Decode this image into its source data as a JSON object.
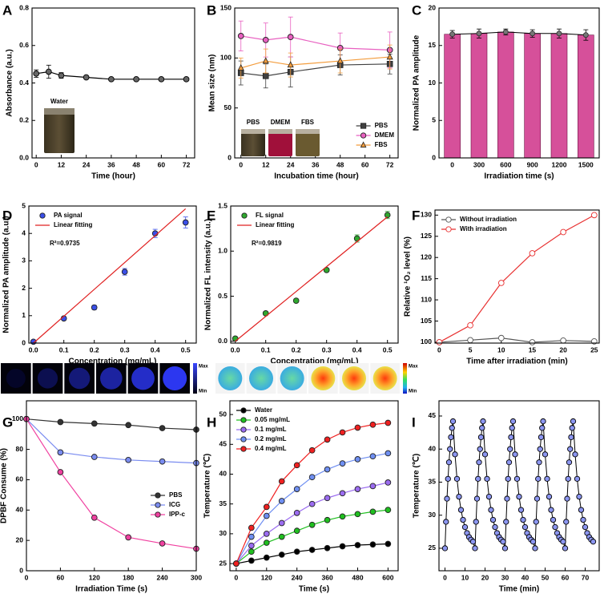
{
  "chart_data": [
    {
      "type": "line",
      "label": "A",
      "xlabel": "Time (hour)",
      "ylabel": "Absorbance (a.u.)",
      "annotation": "Water",
      "x": [
        0,
        6,
        12,
        24,
        36,
        48,
        60,
        72
      ],
      "xlim": [
        -2,
        76
      ],
      "xticks": [
        0,
        12,
        24,
        36,
        48,
        60,
        72
      ],
      "ylim": [
        0,
        0.8
      ],
      "yticks": [
        {
          "value": 0,
          "label": "0.0"
        },
        0.2,
        0.4,
        0.6,
        0.8
      ],
      "series": [
        {
          "color": "#000000",
          "marker": "circle",
          "marker_color": "#666666",
          "values": [
            0.45,
            0.46,
            0.44,
            0.43,
            0.42,
            0.42,
            0.42,
            0.42
          ],
          "errors": [
            0.02,
            0.035,
            0.015,
            0.008,
            0.008,
            0.008,
            0.008,
            0.008
          ]
        }
      ]
    },
    {
      "type": "line",
      "label": "B",
      "xlabel": "Incubation time (hour)",
      "ylabel": "Mean size (nm)",
      "vial_labels": [
        "PBS",
        "DMEM",
        "FBS"
      ],
      "x": [
        0,
        12,
        24,
        48,
        72
      ],
      "xlim": [
        -3,
        76
      ],
      "xticks": [
        0,
        12,
        24,
        36,
        48,
        60,
        72
      ],
      "ylim": [
        0,
        150
      ],
      "yticks": [
        0,
        50,
        100,
        150
      ],
      "legend": "lower right",
      "series": [
        {
          "name": "PBS",
          "color": "#404040",
          "marker": "square",
          "values": [
            85,
            82,
            86,
            93,
            94
          ],
          "errors": [
            12,
            12,
            15,
            10,
            10
          ]
        },
        {
          "name": "DMEM",
          "color": "#e860c0",
          "marker": "circle",
          "values": [
            122,
            118,
            121,
            110,
            108
          ],
          "errors": [
            15,
            17,
            20,
            15,
            18
          ]
        },
        {
          "name": "FBS",
          "color": "#f39c3c",
          "marker": "triangle",
          "values": [
            90,
            97,
            93,
            97,
            101
          ],
          "errors": [
            10,
            12,
            12,
            12,
            12
          ]
        }
      ]
    },
    {
      "type": "bar",
      "label": "C",
      "xlabel": "Irradiation time (s)",
      "ylabel": "Normalized PA amplitude",
      "categories": [
        "0",
        "300",
        "600",
        "900",
        "1200",
        "1500"
      ],
      "values": [
        16.5,
        16.6,
        16.8,
        16.6,
        16.6,
        16.4
      ],
      "errors": [
        0.5,
        0.6,
        0.4,
        0.5,
        0.6,
        0.7
      ],
      "color": "#d6509a",
      "ylim": [
        0,
        20
      ],
      "yticks": [
        0,
        5,
        10,
        15,
        20
      ]
    },
    {
      "type": "scatter",
      "label": "D",
      "xlabel": "Concentration (mg/mL)",
      "ylabel": "Normalized PA amplitude (a.u.)",
      "r_squared": "R²=0.9735",
      "colorbar_labels": [
        "Max",
        "Min"
      ],
      "xlim": [
        -0.015,
        0.535
      ],
      "xticks": [
        {
          "value": 0,
          "label": "0.0"
        },
        0.1,
        0.2,
        0.3,
        0.4,
        0.5
      ],
      "ylim": [
        0,
        5
      ],
      "yticks": [
        0,
        1,
        2,
        3,
        4,
        5
      ],
      "legend": "upper left",
      "series": [
        {
          "name": "PA signal",
          "color": "#3a4fe8",
          "marker": "circle",
          "x": [
            0,
            0.1,
            0.2,
            0.3,
            0.4,
            0.5
          ],
          "values": [
            0.05,
            0.9,
            1.3,
            2.6,
            4.0,
            4.4
          ],
          "errors": [
            0.05,
            0.06,
            0.08,
            0.12,
            0.15,
            0.2
          ]
        },
        {
          "name": "Linear fitting",
          "color": "#e02020",
          "line": true,
          "x": [
            0,
            0.5
          ],
          "values": [
            0,
            4.9
          ]
        }
      ]
    },
    {
      "type": "scatter",
      "label": "E",
      "xlabel": "Concentration (mg/mL)",
      "ylabel": "Normalized FL intensity (a.u.)",
      "r_squared": "R²=0.9819",
      "colorbar_labels": [
        "Max",
        "Min"
      ],
      "xlim": [
        -0.015,
        0.535
      ],
      "xticks": [
        {
          "value": 0,
          "label": "0.0"
        },
        0.1,
        0.2,
        0.3,
        0.4,
        0.5
      ],
      "ylim": [
        -0.02,
        1.5
      ],
      "yticks": [
        {
          "value": 0,
          "label": "0.0"
        },
        0.5,
        {
          "value": 1,
          "label": "1.0"
        },
        1.5
      ],
      "legend": "upper left",
      "series": [
        {
          "name": "FL signal",
          "color": "#2ea82e",
          "marker": "circle",
          "x": [
            0,
            0.1,
            0.2,
            0.3,
            0.4,
            0.5
          ],
          "values": [
            0.03,
            0.31,
            0.45,
            0.79,
            1.14,
            1.4
          ],
          "errors": [
            0.02,
            0.02,
            0.02,
            0.02,
            0.04,
            0.04
          ]
        },
        {
          "name": "Linear fitting",
          "color": "#e02020",
          "line": true,
          "x": [
            0,
            0.5
          ],
          "values": [
            0,
            1.38
          ]
        }
      ]
    },
    {
      "type": "line",
      "label": "F",
      "xlabel": "Time after irradiation (min)",
      "ylabel": "Relative ¹O₂ level (%)",
      "x": [
        0,
        5,
        10,
        15,
        20,
        25
      ],
      "xlim": [
        -0.7,
        25.8
      ],
      "xticks": [
        0,
        5,
        10,
        15,
        20,
        25
      ],
      "ylim": [
        99.8,
        131.2
      ],
      "yticks": [
        100,
        105,
        110,
        115,
        120,
        125,
        130
      ],
      "legend": "upper left",
      "series": [
        {
          "name": "Without irradiation",
          "color": "#555555",
          "marker": "circle",
          "marker_color": "#ffffff",
          "values": [
            100,
            100.5,
            101,
            100,
            100.4,
            100.2
          ]
        },
        {
          "name": "With irradiation",
          "color": "#e83030",
          "marker": "circle",
          "marker_color": "#ffffff",
          "values": [
            100,
            104,
            114,
            121,
            126,
            130
          ]
        }
      ]
    },
    {
      "type": "line",
      "label": "G",
      "xlabel": "Irradiation Time (s)",
      "ylabel": "DPBF Consume (%)",
      "x": [
        0,
        60,
        120,
        180,
        240,
        300
      ],
      "xlim": [
        0,
        300
      ],
      "xticks": [
        0,
        60,
        120,
        180,
        240,
        300
      ],
      "ylim": [
        0,
        112
      ],
      "yticks": [
        0,
        20,
        40,
        60,
        80,
        100
      ],
      "legend": "center right",
      "series": [
        {
          "name": "PBS",
          "color": "#333333",
          "marker": "circle",
          "values": [
            100,
            98,
            97,
            96,
            94,
            93
          ]
        },
        {
          "name": "ICG",
          "color": "#7a8cf0",
          "marker": "circle",
          "values": [
            100,
            78,
            75,
            73,
            72,
            71
          ]
        },
        {
          "name": "IPP-c",
          "color": "#f040a0",
          "marker": "circle",
          "values": [
            100,
            65,
            35,
            22,
            18,
            14.5
          ]
        }
      ]
    },
    {
      "type": "line",
      "label": "H",
      "xlabel": "Time (s)",
      "ylabel": "Temperature (℃)",
      "x": [
        0,
        60,
        120,
        180,
        240,
        300,
        360,
        420,
        480,
        540,
        600
      ],
      "xlim": [
        -25,
        640
      ],
      "xticks": [
        0,
        120,
        240,
        360,
        480,
        600
      ],
      "ylim": [
        23.8,
        52.3
      ],
      "yticks": [
        25,
        30,
        35,
        40,
        45,
        50
      ],
      "legend": "upper left",
      "series": [
        {
          "name": "Water",
          "color": "#000000",
          "marker": "circle",
          "values": [
            25,
            25.5,
            26,
            26.5,
            27,
            27.3,
            27.6,
            27.9,
            28.1,
            28.2,
            28.3
          ]
        },
        {
          "name": "0.05 mg/mL",
          "color": "#1fbf1f",
          "marker": "circle",
          "values": [
            25,
            27,
            28.5,
            29.5,
            30.5,
            31.5,
            32.3,
            32.9,
            33.3,
            33.7,
            34
          ]
        },
        {
          "name": "0.1  mg/mL",
          "color": "#9b6cf0",
          "marker": "circle",
          "values": [
            25,
            28,
            30,
            31.8,
            33.5,
            35,
            36,
            36.8,
            37.5,
            38,
            38.6
          ]
        },
        {
          "name": "0.2  mg/mL",
          "color": "#6f8ff2",
          "marker": "circle",
          "values": [
            25,
            29.5,
            33,
            35.5,
            37.5,
            39.5,
            40.8,
            41.8,
            42.5,
            43,
            43.5
          ]
        },
        {
          "name": "0.4  mg/mL",
          "color": "#f02020",
          "marker": "circle",
          "values": [
            25,
            31,
            34.5,
            38.8,
            41.5,
            44,
            45.8,
            47,
            47.8,
            48.3,
            48.6
          ]
        }
      ]
    },
    {
      "type": "line",
      "label": "I",
      "xlabel": "Time (min)",
      "ylabel": "Temperature (℃)",
      "xlim": [
        -3,
        77
      ],
      "xticks": [
        0,
        10,
        20,
        30,
        40,
        50,
        60,
        70
      ],
      "ylim": [
        21.6,
        47.3
      ],
      "yticks": [
        25,
        30,
        35,
        40,
        45
      ],
      "x": [
        0,
        0.5,
        1,
        1.5,
        2,
        2.5,
        3,
        3.5,
        4,
        5,
        6,
        7,
        8,
        9,
        10,
        11,
        12,
        13,
        14,
        15,
        15.5,
        16,
        16.5,
        17,
        17.5,
        18,
        18.5,
        19,
        20,
        21,
        22,
        23,
        24,
        25,
        26,
        27,
        28,
        29,
        30,
        30.5,
        31,
        31.5,
        32,
        32.5,
        33,
        33.5,
        34,
        35,
        36,
        37,
        38,
        39,
        40,
        41,
        42,
        43,
        44,
        45,
        45.5,
        46,
        46.5,
        47,
        47.5,
        48,
        48.5,
        49,
        50,
        51,
        52,
        53,
        54,
        55,
        56,
        57,
        58,
        59,
        60,
        60.5,
        61,
        61.5,
        62,
        62.5,
        63,
        63.5,
        64,
        65,
        66,
        67,
        68,
        69,
        70,
        71,
        72,
        73,
        74
      ],
      "series": [
        {
          "color": "#000000",
          "marker": "circle",
          "marker_color": "#8c96f0",
          "values": [
            25,
            29,
            32.5,
            35.5,
            38,
            40,
            41.8,
            43.2,
            44.2,
            39.2,
            35.5,
            32.8,
            30.8,
            29.3,
            28.2,
            27.3,
            26.7,
            26.3,
            26,
            25,
            29,
            32.5,
            35.5,
            38,
            40,
            41.8,
            43.2,
            44.2,
            39.2,
            35.5,
            32.8,
            30.8,
            29.3,
            28.2,
            27.3,
            26.7,
            26.3,
            26,
            25,
            29,
            32.5,
            35.5,
            38,
            40,
            41.8,
            43.2,
            44.2,
            39.2,
            35.5,
            32.8,
            30.8,
            29.3,
            28.2,
            27.3,
            26.7,
            26.3,
            26,
            25,
            29,
            32.5,
            35.5,
            38,
            40,
            41.8,
            43.2,
            44.2,
            39.2,
            35.5,
            32.8,
            30.8,
            29.3,
            28.2,
            27.3,
            26.7,
            26.3,
            26,
            25,
            29,
            32.5,
            35.5,
            38,
            40,
            41.8,
            43.2,
            44.2,
            39.2,
            35.5,
            32.8,
            30.8,
            29.3,
            28.2,
            27.3,
            26.7,
            26.3,
            26
          ]
        }
      ]
    }
  ]
}
